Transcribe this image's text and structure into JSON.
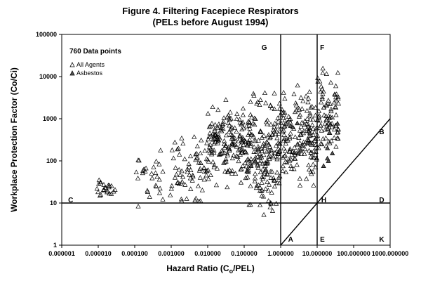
{
  "chart_data": {
    "type": "scatter",
    "title": "Figure 4.  Filtering Facepiece Respirators",
    "subtitle": "(PELs before August 1994)",
    "xlabel": "Hazard Ratio (C",
    "xlabel_sub": "o",
    "xlabel_tail": "/PEL)",
    "ylabel": "Workplace Protection Factor (Co/Ci)",
    "x_scale": "log",
    "y_scale": "log",
    "xlim": [
      1e-06,
      1000
    ],
    "ylim": [
      1,
      100000
    ],
    "x_ticks": [
      "0.000001",
      "0.000010",
      "0.000100",
      "0.001000",
      "0.010000",
      "0.100000",
      "1.000000",
      "10.000000",
      "100.000000",
      "1000.000000"
    ],
    "y_ticks": [
      "1",
      "10",
      "100",
      "1000",
      "10000",
      "100000"
    ],
    "grid": false,
    "legend": {
      "placement": "top-left",
      "title": "760 Data points",
      "entries": [
        "All Agents",
        "Asbestos"
      ]
    },
    "reference_lines": [
      {
        "kind": "horizontal",
        "y": 10
      },
      {
        "kind": "vertical",
        "x": 1
      },
      {
        "kind": "vertical",
        "x": 10
      },
      {
        "kind": "diagonal",
        "from": [
          1,
          1
        ],
        "to": [
          1000,
          1000
        ]
      }
    ],
    "region_labels": [
      {
        "text": "G",
        "x": 0.3,
        "y": 50000
      },
      {
        "text": "F",
        "x": 12,
        "y": 50000
      },
      {
        "text": "B",
        "x": 500,
        "y": 500
      },
      {
        "text": "C",
        "x": 1.5e-06,
        "y": 12
      },
      {
        "text": "H",
        "x": 13,
        "y": 12
      },
      {
        "text": "D",
        "x": 500,
        "y": 12
      },
      {
        "text": "A",
        "x": 1.6,
        "y": 1.4
      },
      {
        "text": "E",
        "x": 12,
        "y": 1.4
      },
      {
        "text": "K",
        "x": 500,
        "y": 1.4
      }
    ],
    "series": [
      {
        "name": "All Agents",
        "marker": "open-triangle",
        "clusters": [
          {
            "x_range": [
              8e-06,
              3e-05
            ],
            "y_range": [
              10,
              45
            ],
            "count": 25
          },
          {
            "x_range": [
              0.0001,
              0.001
            ],
            "y_range": [
              5,
              300
            ],
            "count": 30
          },
          {
            "x_range": [
              0.001,
              0.01
            ],
            "y_range": [
              5,
              800
            ],
            "count": 70
          },
          {
            "x_range": [
              0.01,
              0.1
            ],
            "y_range": [
              15,
              5000
            ],
            "count": 160
          },
          {
            "x_range": [
              0.1,
              1
            ],
            "y_range": [
              3,
              10000
            ],
            "count": 200
          },
          {
            "x_range": [
              1,
              10
            ],
            "y_range": [
              10,
              10000
            ],
            "count": 160
          },
          {
            "x_range": [
              10,
              40
            ],
            "y_range": [
              30,
              40000
            ],
            "count": 90
          }
        ]
      },
      {
        "name": "Asbestos",
        "marker": "filled-triangle",
        "clusters": [
          {
            "x_range": [
              0.1,
              1
            ],
            "y_range": [
              20,
              800
            ],
            "count": 5
          },
          {
            "x_range": [
              1,
              10
            ],
            "y_range": [
              10,
              3000
            ],
            "count": 8
          },
          {
            "x_range": [
              10,
              40
            ],
            "y_range": [
              30,
              3000
            ],
            "count": 7
          }
        ]
      }
    ]
  }
}
